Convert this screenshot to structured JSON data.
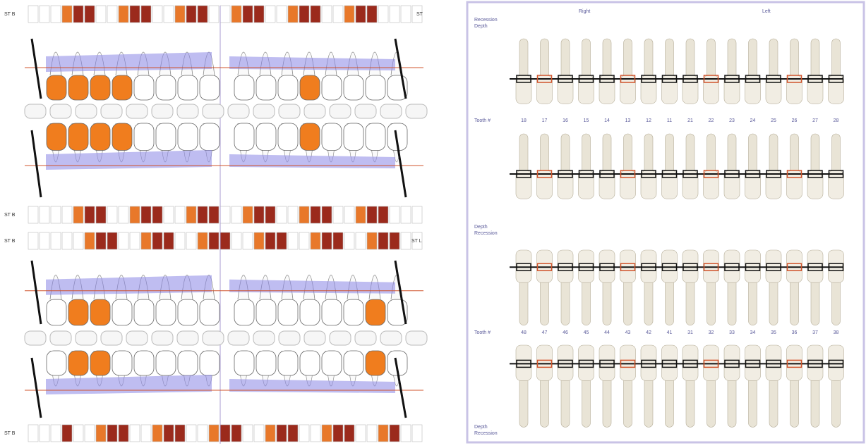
{
  "left_panel": {
    "row_labels": [
      "ST B",
      "ST",
      "ST B",
      "ST B",
      "ST L",
      "ST B"
    ]
  },
  "right_panel": {
    "side_labels": [
      "Right",
      "Left"
    ],
    "upper_header": [
      "Recession",
      "Depth"
    ],
    "tooth_label": "Tooth #",
    "upper_teeth": [
      "18",
      "17",
      "16",
      "15",
      "14",
      "13",
      "12",
      "11",
      "21",
      "22",
      "23",
      "24",
      "25",
      "26",
      "27",
      "28"
    ],
    "lower_teeth": [
      "48",
      "47",
      "46",
      "45",
      "44",
      "43",
      "42",
      "41",
      "31",
      "32",
      "33",
      "34",
      "35",
      "36",
      "37",
      "38"
    ],
    "lower_header": [
      "Depth",
      "Recession"
    ],
    "footer": [
      "Depth",
      "Recession"
    ]
  }
}
